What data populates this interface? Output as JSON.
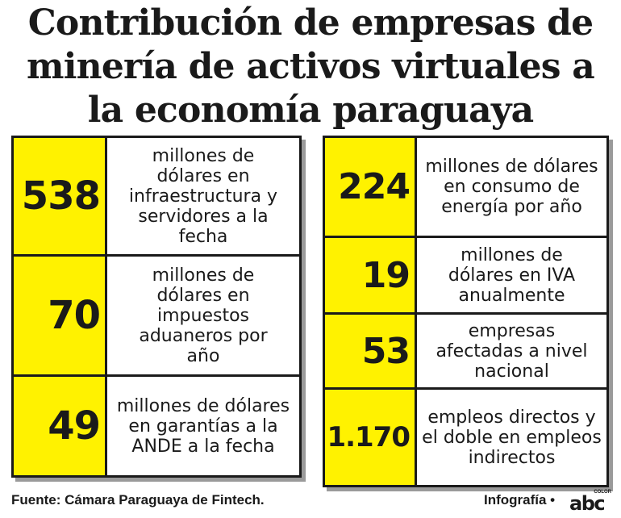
{
  "title": {
    "line1": "Contribución de empresas de",
    "line2": "minería de activos virtuales a",
    "line3": "la economía paraguaya"
  },
  "left_rows": [
    {
      "value": "538",
      "description": "millones de dólares en infraestructura y servidores a la fecha"
    },
    {
      "value": "70",
      "description": "millones de dólares en impuestos aduaneros por año"
    },
    {
      "value": "49",
      "description": "millones de dólares en garantías a la ANDE a la fecha"
    }
  ],
  "right_rows": [
    {
      "value": "224",
      "description": "millones de dólares en consumo de energía por año"
    },
    {
      "value": "19",
      "description": "millones de dólares en IVA anualmente"
    },
    {
      "value": "53",
      "description": "empresas afectadas a nivel nacional"
    },
    {
      "value": "1.170",
      "description": "empleos directos y el doble en empleos indirectos"
    }
  ],
  "footer": {
    "source": "Fuente: Cámara Paraguaya de Fintech.",
    "credit": "Infografía •",
    "logo_text": "abc",
    "logo_sub": "COLOR"
  },
  "colors": {
    "highlight": "#fff200",
    "text": "#1a1a1a",
    "shadow": "#9a9a9a"
  }
}
